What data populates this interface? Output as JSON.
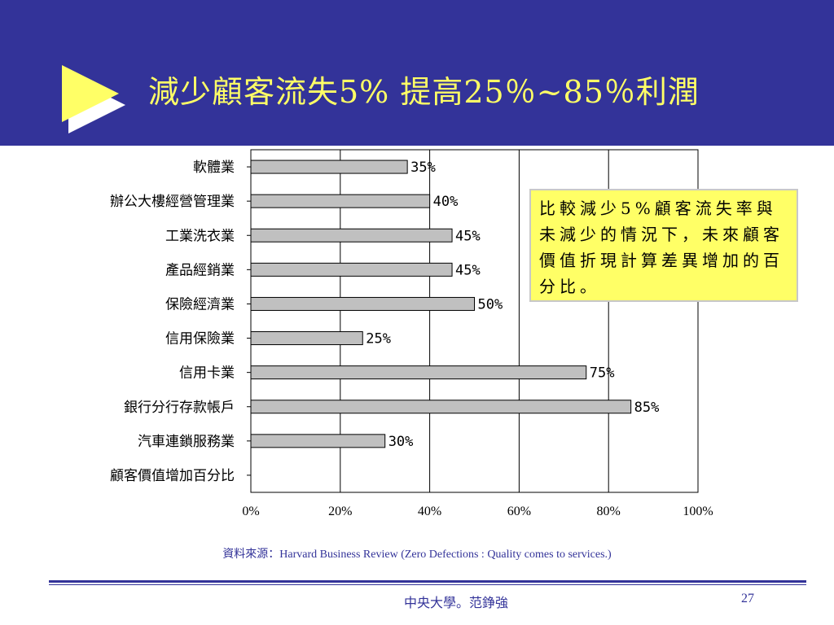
{
  "slide": {
    "title": "減少顧客流失5% 提高25％~85％利潤",
    "note": "比較減少5%顧客流失率與未減少的情況下，未來顧客價值折現計算差異增加的百分比。",
    "source": "資料來源：Harvard Business Review (Zero Defections : Quality comes to services.)",
    "footer_author": "中央大學。范錚強",
    "page_number": "27"
  },
  "colors": {
    "header_bg": "#333399",
    "title_text": "#ffff66",
    "bar_fill": "#c0c0c0",
    "note_bg": "#ffff66",
    "footer_text": "#333399"
  },
  "chart_data": {
    "type": "bar",
    "orientation": "horizontal",
    "categories": [
      "軟體業",
      "辦公大樓經營管理業",
      "工業洗衣業",
      "產品經銷業",
      "保險經濟業",
      "信用保險業",
      "信用卡業",
      "銀行分行存款帳戶",
      "汽車連鎖服務業",
      "顧客價值增加百分比"
    ],
    "values": [
      35,
      40,
      45,
      45,
      50,
      25,
      75,
      85,
      30,
      null
    ],
    "data_labels": [
      "35%",
      "40%",
      "45%",
      "45%",
      "50%",
      "25%",
      "75%",
      "85%",
      "30%",
      ""
    ],
    "x_ticks": [
      0,
      20,
      40,
      60,
      80,
      100
    ],
    "x_tick_labels": [
      "0%",
      "20%",
      "40%",
      "60%",
      "80%",
      "100%"
    ],
    "xlim": [
      0,
      100
    ],
    "grid": "vertical major gridlines",
    "legend": "none"
  }
}
